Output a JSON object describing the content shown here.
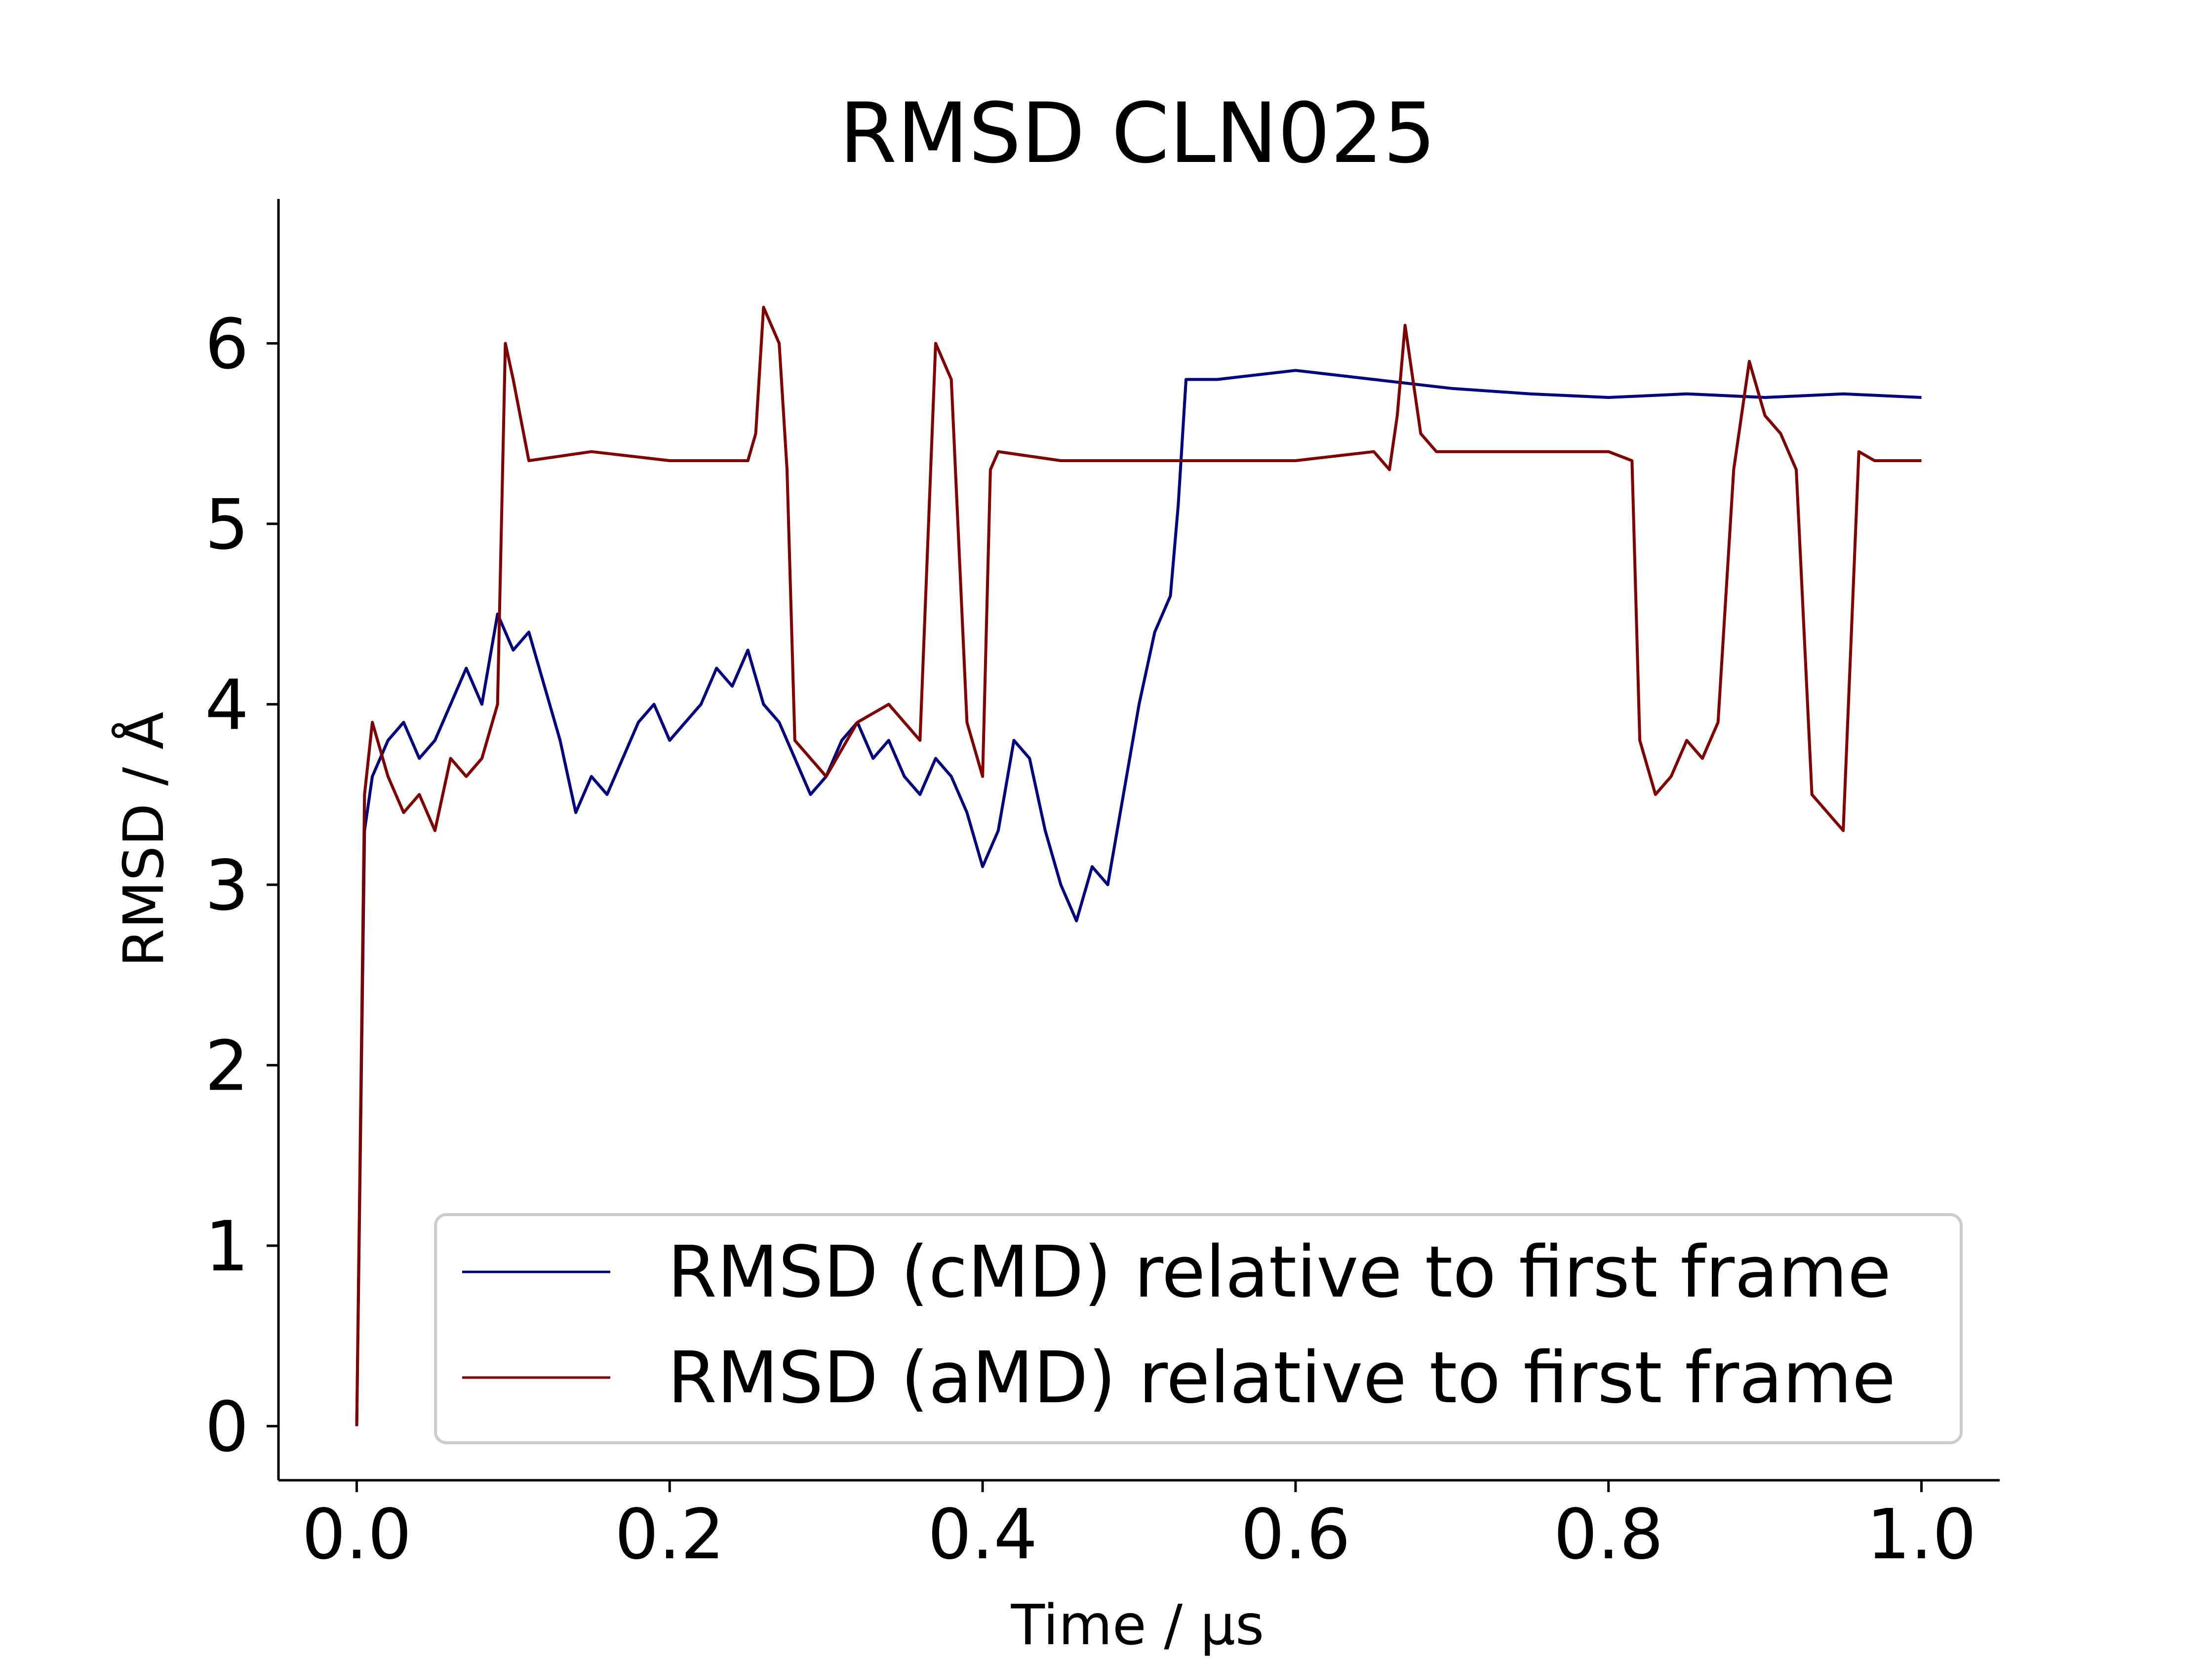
{
  "chart_data": {
    "type": "line",
    "title": "RMSD CLN025",
    "xlabel": "Time / μs",
    "ylabel": "RMSD / Å",
    "xlim": [
      -0.05,
      1.05
    ],
    "ylim": [
      -0.3,
      6.8
    ],
    "xticks": [
      0.0,
      0.2,
      0.4,
      0.6,
      0.8,
      1.0
    ],
    "xtick_labels": [
      "0.0",
      "0.2",
      "0.4",
      "0.6",
      "0.8",
      "1.0"
    ],
    "yticks": [
      0,
      1,
      2,
      3,
      4,
      5,
      6
    ],
    "ytick_labels": [
      "0",
      "1",
      "2",
      "3",
      "4",
      "5",
      "6"
    ],
    "grid": false,
    "legend_position": "lower-right",
    "series": [
      {
        "name": "RMSD (cMD) relative to first frame",
        "color": "#000080",
        "x": [
          0.0,
          0.005,
          0.01,
          0.02,
          0.03,
          0.04,
          0.05,
          0.06,
          0.07,
          0.08,
          0.09,
          0.1,
          0.11,
          0.12,
          0.13,
          0.14,
          0.15,
          0.16,
          0.17,
          0.18,
          0.19,
          0.2,
          0.21,
          0.22,
          0.23,
          0.24,
          0.25,
          0.26,
          0.27,
          0.28,
          0.29,
          0.3,
          0.31,
          0.32,
          0.33,
          0.34,
          0.35,
          0.36,
          0.37,
          0.38,
          0.39,
          0.4,
          0.41,
          0.42,
          0.43,
          0.44,
          0.45,
          0.46,
          0.47,
          0.48,
          0.49,
          0.5,
          0.51,
          0.52,
          0.525,
          0.53,
          0.55,
          0.6,
          0.65,
          0.7,
          0.75,
          0.8,
          0.85,
          0.9,
          0.95,
          1.0
        ],
        "values": [
          0.0,
          3.3,
          3.6,
          3.8,
          3.9,
          3.7,
          3.8,
          4.0,
          4.2,
          4.0,
          4.5,
          4.3,
          4.4,
          4.1,
          3.8,
          3.4,
          3.6,
          3.5,
          3.7,
          3.9,
          4.0,
          3.8,
          3.9,
          4.0,
          4.2,
          4.1,
          4.3,
          4.0,
          3.9,
          3.7,
          3.5,
          3.6,
          3.8,
          3.9,
          3.7,
          3.8,
          3.6,
          3.5,
          3.7,
          3.6,
          3.4,
          3.1,
          3.3,
          3.8,
          3.7,
          3.3,
          3.0,
          2.8,
          3.1,
          3.0,
          3.5,
          4.0,
          4.4,
          4.6,
          5.1,
          5.8,
          5.8,
          5.85,
          5.8,
          5.75,
          5.72,
          5.7,
          5.72,
          5.7,
          5.72,
          5.7
        ]
      },
      {
        "name": "RMSD (aMD) relative to first frame",
        "color": "#800000",
        "x": [
          0.0,
          0.005,
          0.01,
          0.02,
          0.03,
          0.04,
          0.05,
          0.06,
          0.07,
          0.08,
          0.09,
          0.095,
          0.1,
          0.11,
          0.15,
          0.2,
          0.25,
          0.255,
          0.26,
          0.27,
          0.275,
          0.28,
          0.3,
          0.32,
          0.34,
          0.36,
          0.37,
          0.38,
          0.39,
          0.4,
          0.405,
          0.41,
          0.45,
          0.5,
          0.55,
          0.6,
          0.65,
          0.66,
          0.665,
          0.67,
          0.68,
          0.69,
          0.7,
          0.75,
          0.8,
          0.815,
          0.82,
          0.83,
          0.84,
          0.85,
          0.86,
          0.87,
          0.88,
          0.89,
          0.9,
          0.91,
          0.92,
          0.93,
          0.94,
          0.95,
          0.96,
          0.97,
          1.0
        ],
        "values": [
          0.0,
          3.5,
          3.9,
          3.6,
          3.4,
          3.5,
          3.3,
          3.7,
          3.6,
          3.7,
          4.0,
          6.0,
          5.8,
          5.35,
          5.4,
          5.35,
          5.35,
          5.5,
          6.2,
          6.0,
          5.3,
          3.8,
          3.6,
          3.9,
          4.0,
          3.8,
          6.0,
          5.8,
          3.9,
          3.6,
          5.3,
          5.4,
          5.35,
          5.35,
          5.35,
          5.35,
          5.4,
          5.3,
          5.6,
          6.1,
          5.5,
          5.4,
          5.4,
          5.4,
          5.4,
          5.35,
          3.8,
          3.5,
          3.6,
          3.8,
          3.7,
          3.9,
          5.3,
          5.9,
          5.6,
          5.5,
          5.3,
          3.5,
          3.4,
          3.3,
          5.4,
          5.35,
          5.35
        ]
      }
    ]
  }
}
